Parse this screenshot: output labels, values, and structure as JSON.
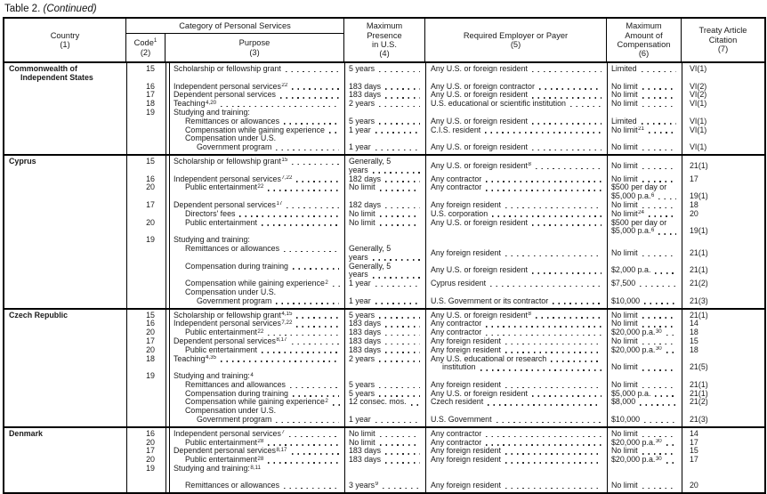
{
  "title": {
    "label": "Table 2.",
    "continued": "(Continued)"
  },
  "colors": {
    "text": "#1a1a1a",
    "border": "#000000",
    "background": "#ffffff"
  },
  "header": {
    "country": "Country",
    "country_num": "(1)",
    "category": "Category of Personal Services",
    "code": "Code",
    "code_sup": "1",
    "code_num": "(2)",
    "purpose": "Purpose",
    "purpose_num": "(3)",
    "presence_lines": [
      "Maximum",
      "Presence",
      "in U.S.",
      "(4)"
    ],
    "payer_lines": [
      "Required Employer or Payer",
      "(5)"
    ],
    "comp_lines": [
      "Maximum",
      "Amount of",
      "Compensation",
      "(6)"
    ],
    "cit_lines": [
      "Treaty Article",
      "Citation",
      "(7)"
    ]
  },
  "sections": [
    {
      "country": [
        "Commonwealth of",
        ">Independent States"
      ],
      "rows": [
        {
          "code": "15",
          "p": [
            "Scholarship or fellowship grant|d"
          ],
          "pres": [
            "5 years|d"
          ],
          "pay": [
            "Any U.S. or foreign resident|d"
          ],
          "comp": [
            "Limited|d"
          ],
          "cit": [
            "VI(1)"
          ]
        },
        {
          "code": "16",
          "p": [
            "Independent personal services^22|d"
          ],
          "pres": [
            "183 days|d"
          ],
          "pay": [
            "Any U.S. or foreign contractor|d"
          ],
          "comp": [
            "No limit|d"
          ],
          "cit": [
            "VI(2)"
          ]
        },
        {
          "code": "17",
          "p": [
            "Dependent personal services|d"
          ],
          "pres": [
            "183 days|d"
          ],
          "pay": [
            "Any U.S. or foreign resident|d"
          ],
          "comp": [
            "No limit|d"
          ],
          "cit": [
            "VI(2)"
          ]
        },
        {
          "code": "18",
          "p": [
            "Teaching^4,20|d"
          ],
          "pres": [
            "2 years|d"
          ],
          "pay": [
            "U.S. educational or scientific institution|d"
          ],
          "comp": [
            "No limit|d"
          ],
          "cit": [
            "VI(1)"
          ]
        },
        {
          "code": "19",
          "p": [
            "Studying and training:"
          ]
        },
        {
          "p": [
            ">Remittances or allowances|d"
          ],
          "pres": [
            "5 years|d"
          ],
          "pay": [
            "Any U.S. or foreign resident|d"
          ],
          "comp": [
            "Limited|d"
          ],
          "cit": [
            "VI(1)"
          ]
        },
        {
          "p": [
            ">Compensation while gaining experience|d"
          ],
          "pres": [
            "1 year|d"
          ],
          "pay": [
            "C.I.S. resident|d"
          ],
          "comp": [
            "No limit^21|d"
          ],
          "cit": [
            "VI(1)"
          ]
        },
        {
          "p": [
            ">Compensation under U.S."
          ]
        },
        {
          "p": [
            ">>Government program|d"
          ],
          "pres": [
            "1 year|d"
          ],
          "pay": [
            "Any U.S. or foreign resident|d"
          ],
          "comp": [
            "No limit|d"
          ],
          "cit": [
            "VI(1)"
          ]
        }
      ]
    },
    {
      "country": [
        "Cyprus"
      ],
      "rows": [
        {
          "code": "15",
          "vmid": true,
          "p": [
            "Scholarship or fellowship grant^15|d"
          ],
          "pres": [
            "Generally, 5",
            "years|d"
          ],
          "pay": [
            "Any U.S. or foreign resident^8|d"
          ],
          "comp": [
            "No limit|d"
          ],
          "cit": [
            "21(1)"
          ]
        },
        {
          "code": "16",
          "p": [
            "Independent personal services^7,22|d"
          ],
          "pres": [
            "182 days|d"
          ],
          "pay": [
            "Any contractor|d"
          ],
          "comp": [
            "No limit|d"
          ],
          "cit": [
            "17"
          ]
        },
        {
          "code": "20",
          "p": [
            ">Public entertainment^22|d"
          ],
          "pres": [
            "No limit|d"
          ],
          "pay": [
            "Any contractor|d"
          ],
          "comp": [
            "$500 per day or",
            "$5,000 p.a.^6|d"
          ],
          "cit": [
            "",
            "19(1)"
          ]
        },
        {
          "code": "17",
          "p": [
            "Dependent personal services^17|d"
          ],
          "pres": [
            "182 days|d"
          ],
          "pay": [
            "Any foreign resident|d"
          ],
          "comp": [
            "No limit|d"
          ],
          "cit": [
            "18"
          ]
        },
        {
          "p": [
            ">Directors' fees|d"
          ],
          "pres": [
            "No limit|d"
          ],
          "pay": [
            "U.S. corporation|d"
          ],
          "comp": [
            "No limit^24|d"
          ],
          "cit": [
            "20"
          ]
        },
        {
          "code": "20",
          "p": [
            ">Public entertainment|d"
          ],
          "pres": [
            "No limit|d"
          ],
          "pay": [
            "Any U.S. or foreign resident|d"
          ],
          "comp": [
            "$500 per day or",
            "$5,000 p.a.^6|d"
          ],
          "cit": [
            "",
            "19(1)"
          ]
        },
        {
          "code": "19",
          "p": [
            "Studying and training:"
          ]
        },
        {
          "vmid": true,
          "p": [
            ">Remittances or allowances|d"
          ],
          "pres": [
            "Generally, 5",
            "years|d"
          ],
          "pay": [
            "Any foreign resident|d"
          ],
          "comp": [
            "No limit|d"
          ],
          "cit": [
            "21(1)"
          ]
        },
        {
          "vmid": true,
          "p": [
            ">Compensation during training|d"
          ],
          "pres": [
            "Generally, 5",
            "years|d"
          ],
          "pay": [
            "Any U.S. or foreign resident|d"
          ],
          "comp": [
            "$2,000 p.a.|d"
          ],
          "cit": [
            "21(1)"
          ]
        },
        {
          "p": [
            ">Compensation while gaining experience^2|d"
          ],
          "pres": [
            "1 year|d"
          ],
          "pay": [
            "Cyprus resident|d"
          ],
          "comp": [
            "$7,500|d"
          ],
          "cit": [
            "21(2)"
          ]
        },
        {
          "p": [
            ">Compensation under U.S."
          ]
        },
        {
          "p": [
            ">>Government program|d"
          ],
          "pres": [
            "1 year|d"
          ],
          "pay": [
            "U.S. Government or its contractor|d"
          ],
          "comp": [
            "$10,000|d"
          ],
          "cit": [
            "21(3)"
          ]
        }
      ]
    },
    {
      "country": [
        "Czech Republic"
      ],
      "rows": [
        {
          "code": "15",
          "p": [
            "Scholarship or fellowship grant^4,15|d"
          ],
          "pres": [
            "5 years|d"
          ],
          "pay": [
            "Any U.S. or foreign resident^8|d"
          ],
          "comp": [
            "No limit|d"
          ],
          "cit": [
            "21(1)"
          ]
        },
        {
          "code": "16",
          "p": [
            "Independent personal services^7,22|d"
          ],
          "pres": [
            "183 days|d"
          ],
          "pay": [
            "Any contractor|d"
          ],
          "comp": [
            "No limit|d"
          ],
          "cit": [
            "14"
          ]
        },
        {
          "code": "20",
          "p": [
            ">Public entertainment^22|d"
          ],
          "pres": [
            "183 days|d"
          ],
          "pay": [
            "Any contractor|d"
          ],
          "comp": [
            "$20,000 p.a.^30|d"
          ],
          "cit": [
            "18"
          ]
        },
        {
          "code": "17",
          "p": [
            "Dependent personal services^8,17|d"
          ],
          "pres": [
            "183 days|d"
          ],
          "pay": [
            "Any foreign resident|d"
          ],
          "comp": [
            "No limit|d"
          ],
          "cit": [
            "15"
          ]
        },
        {
          "code": "20",
          "p": [
            ">Public entertainment|d"
          ],
          "pres": [
            "183 days|d"
          ],
          "pay": [
            "Any foreign resident|d"
          ],
          "comp": [
            "$20,000 p.a.^30|d"
          ],
          "cit": [
            "18"
          ]
        },
        {
          "code": "18",
          "p": [
            "Teaching^4,35|d"
          ],
          "pres": [
            "2 years|d"
          ],
          "pay": [
            "Any U.S. educational or research|d",
            ">institution|d"
          ],
          "comp": [
            "",
            "No limit|d"
          ],
          "cit": [
            "",
            "21(5)"
          ]
        },
        {
          "code": "19",
          "p": [
            "Studying and training:^4"
          ]
        },
        {
          "p": [
            ">Remittances and allowances|d"
          ],
          "pres": [
            "5 years|d"
          ],
          "pay": [
            "Any foreign resident|d"
          ],
          "comp": [
            "No limit|d"
          ],
          "cit": [
            "21(1)"
          ]
        },
        {
          "p": [
            ">Compensation during training|d"
          ],
          "pres": [
            "5 years|d"
          ],
          "pay": [
            "Any U.S. or foreign resident|d"
          ],
          "comp": [
            "$5,000 p.a.|d"
          ],
          "cit": [
            "21(1)"
          ]
        },
        {
          "p": [
            ">Compensation while gaining experience^2|d"
          ],
          "pres": [
            "12 consec. mos.|d"
          ],
          "pay": [
            "Czech resident|d"
          ],
          "comp": [
            "$8,000|d"
          ],
          "cit": [
            "21(2)"
          ]
        },
        {
          "p": [
            ">Compensation under U.S."
          ]
        },
        {
          "p": [
            ">>Government program|d"
          ],
          "pres": [
            "1 year|d"
          ],
          "pay": [
            "U.S. Government|d"
          ],
          "comp": [
            "$10,000|d"
          ],
          "cit": [
            "21(3)"
          ]
        }
      ]
    },
    {
      "country": [
        "Denmark"
      ],
      "rows": [
        {
          "code": "16",
          "p": [
            "Independent personal services^7|d"
          ],
          "pres": [
            "No limit|d"
          ],
          "pay": [
            "Any contractor|d"
          ],
          "comp": [
            "No limit|d"
          ],
          "cit": [
            "14"
          ]
        },
        {
          "code": "20",
          "p": [
            ">Public entertainment^28|d"
          ],
          "pres": [
            "No limit|d"
          ],
          "pay": [
            "Any contractor|d"
          ],
          "comp": [
            "$20,000 p.a.^30|d"
          ],
          "cit": [
            "17"
          ]
        },
        {
          "code": "17",
          "p": [
            "Dependent personal services^8,17|d"
          ],
          "pres": [
            "183 days|d"
          ],
          "pay": [
            "Any foreign resident|d"
          ],
          "comp": [
            "No limit|d"
          ],
          "cit": [
            "15"
          ]
        },
        {
          "code": "20",
          "p": [
            ">Public entertainment^28|d"
          ],
          "pres": [
            "183 days|d"
          ],
          "pay": [
            "Any foreign resident|d"
          ],
          "comp": [
            "$20,000 p.a.^30|d"
          ],
          "cit": [
            "17"
          ]
        },
        {
          "code": "19",
          "p": [
            "Studying and training:^8,11"
          ]
        },
        {
          "gap": true,
          "p": [
            ">Remittances or allowances|d"
          ],
          "pres": [
            "3 years^9|d"
          ],
          "pay": [
            "Any foreign resident|d"
          ],
          "comp": [
            "No limit|d"
          ],
          "cit": [
            "20"
          ]
        }
      ]
    }
  ]
}
